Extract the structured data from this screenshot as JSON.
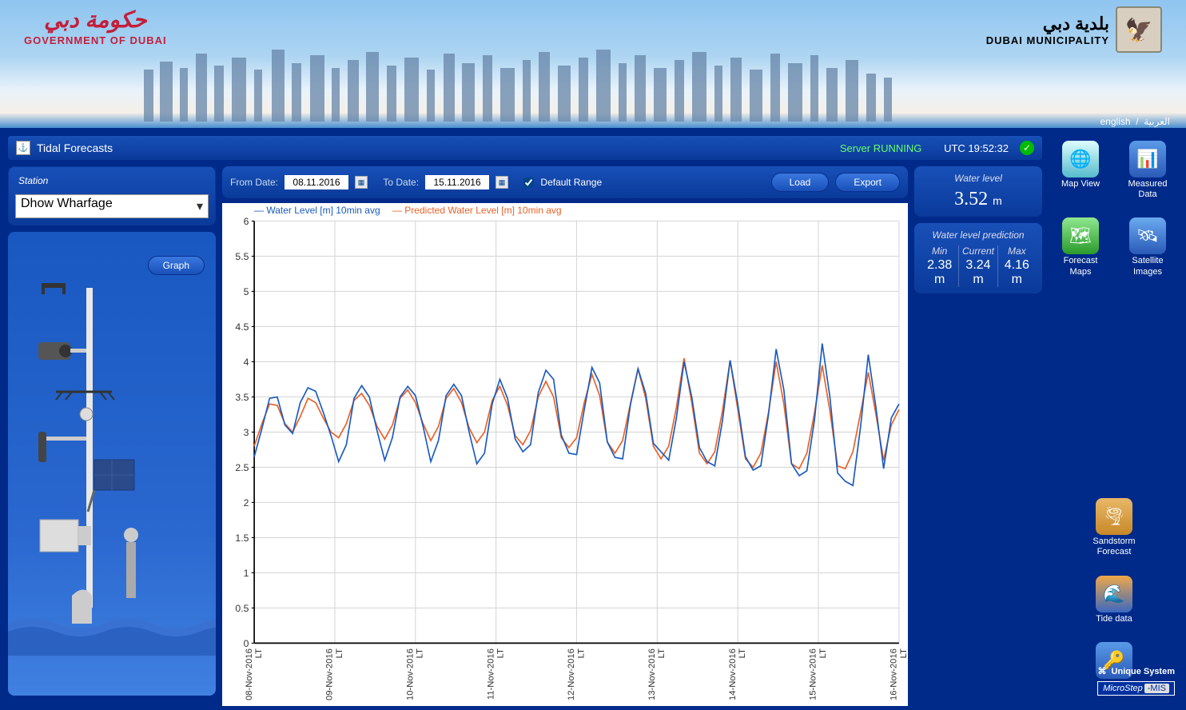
{
  "header": {
    "gov_ar": "حكومة دبي",
    "gov_en": "GOVERNMENT OF DUBAI",
    "muni_ar": "بلدية دبي",
    "muni_en": "DUBAI MUNICIPALITY"
  },
  "lang": {
    "en": "english",
    "ar": "العربية"
  },
  "titlebar": {
    "title": "Tidal Forecasts",
    "server_status": "Server RUNNING",
    "utc": "UTC 19:52:32"
  },
  "station_panel": {
    "label": "Station",
    "selected": "Dhow Wharfage",
    "graph_btn": "Graph"
  },
  "controls": {
    "from_label": "From Date:",
    "from_value": "08.11.2016",
    "to_label": "To Date:",
    "to_value": "15.11.2016",
    "default_range": "Default Range",
    "default_checked": true,
    "load_btn": "Load",
    "export_btn": "Export"
  },
  "stats": {
    "water_level": {
      "label": "Water level",
      "value": "3.52",
      "unit": "m"
    },
    "prediction": {
      "label": "Water level prediction",
      "min": {
        "l": "Min",
        "v": "2.38",
        "u": "m"
      },
      "current": {
        "l": "Current",
        "v": "3.24",
        "u": "m"
      },
      "max": {
        "l": "Max",
        "v": "4.16",
        "u": "m"
      }
    }
  },
  "chart": {
    "type": "line",
    "series1_label": "— Water Level [m] 10min avg",
    "series2_label": "— Predicted Water Level [m] 10min avg",
    "series1_color": "#1a5bbf",
    "series2_color": "#e8622a",
    "background_color": "#ffffff",
    "grid_color": "#d8d8d8",
    "axis_color": "#000000",
    "tick_fontsize": 11,
    "ylim": [
      0,
      6
    ],
    "ytick_step": 0.5,
    "yticks": [
      "0",
      "0.5",
      "1",
      "1.5",
      "2",
      "2.5",
      "3",
      "3.5",
      "4",
      "4.5",
      "5",
      "5.5",
      "6"
    ],
    "xticks": [
      "08-Nov-2016",
      "09-Nov-2016",
      "10-Nov-2016",
      "11-Nov-2016",
      "12-Nov-2016",
      "13-Nov-2016",
      "14-Nov-2016",
      "15-Nov-2016",
      "16-Nov-2016"
    ],
    "xtick_suffix": "LT",
    "series1": [
      2.65,
      3.05,
      3.48,
      3.5,
      3.1,
      2.98,
      3.42,
      3.63,
      3.58,
      3.28,
      2.95,
      2.58,
      2.82,
      3.48,
      3.66,
      3.5,
      3.02,
      2.6,
      2.92,
      3.5,
      3.65,
      3.52,
      3.08,
      2.58,
      2.88,
      3.52,
      3.68,
      3.52,
      3.0,
      2.55,
      2.7,
      3.4,
      3.75,
      3.48,
      2.9,
      2.72,
      2.82,
      3.56,
      3.88,
      3.75,
      2.96,
      2.7,
      2.68,
      3.32,
      3.92,
      3.7,
      2.86,
      2.64,
      2.62,
      3.38,
      3.9,
      3.55,
      2.84,
      2.72,
      2.6,
      3.2,
      4.0,
      3.5,
      2.78,
      2.58,
      2.52,
      3.16,
      4.02,
      3.4,
      2.65,
      2.46,
      2.52,
      3.25,
      4.18,
      3.6,
      2.55,
      2.38,
      2.45,
      3.18,
      4.26,
      3.5,
      2.42,
      2.3,
      2.24,
      3.08,
      4.1,
      3.35,
      2.48,
      3.2,
      3.4
    ],
    "series2": [
      2.8,
      3.12,
      3.4,
      3.38,
      3.12,
      3.0,
      3.22,
      3.48,
      3.42,
      3.2,
      3.0,
      2.92,
      3.12,
      3.45,
      3.55,
      3.38,
      3.08,
      2.9,
      3.1,
      3.48,
      3.6,
      3.42,
      3.12,
      2.88,
      3.08,
      3.48,
      3.62,
      3.42,
      3.06,
      2.85,
      3.0,
      3.45,
      3.65,
      3.38,
      2.95,
      2.82,
      3.02,
      3.5,
      3.72,
      3.5,
      2.92,
      2.78,
      2.92,
      3.42,
      3.82,
      3.52,
      2.86,
      2.7,
      2.88,
      3.4,
      3.9,
      3.48,
      2.8,
      2.62,
      2.8,
      3.35,
      4.05,
      3.42,
      2.7,
      2.55,
      2.72,
      3.3,
      4.02,
      3.32,
      2.62,
      2.5,
      2.7,
      3.28,
      4.0,
      3.4,
      2.55,
      2.48,
      2.7,
      3.28,
      3.95,
      3.3,
      2.52,
      2.48,
      2.72,
      3.28,
      3.85,
      3.25,
      2.6,
      3.1,
      3.32
    ]
  },
  "nav": {
    "map_view": "Map View",
    "measured_data": "Measured Data",
    "forecast_maps": "Forecast Maps",
    "satellite_images": "Satellite Images",
    "sandstorm": "Sandstorm Forecast",
    "tide_data": "Tide data",
    "login": "Login"
  },
  "footer": {
    "unique_system": "Unique System",
    "microstep": "MicroStep",
    "mis": "-MIS"
  }
}
